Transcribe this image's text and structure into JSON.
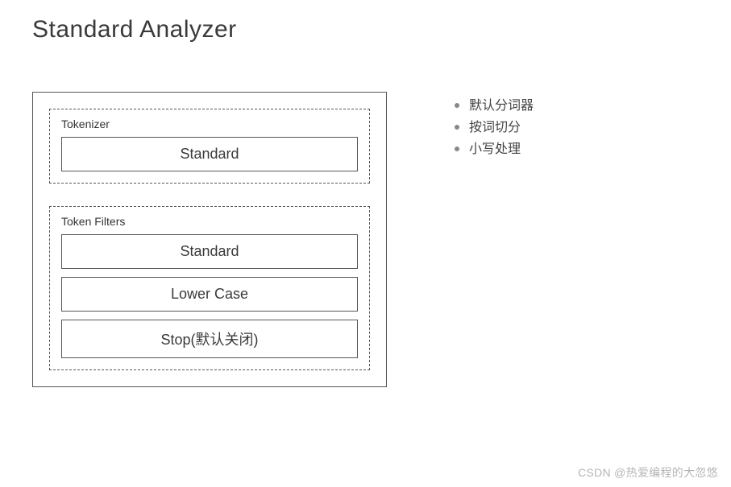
{
  "title": "Standard Analyzer",
  "diagram": {
    "tokenizer": {
      "label": "Tokenizer",
      "items": [
        "Standard"
      ]
    },
    "token_filters": {
      "label": "Token Filters",
      "items": [
        "Standard",
        "Lower Case",
        "Stop(默认关闭)"
      ]
    },
    "colors": {
      "border": "#555555",
      "text": "#3a3a3a",
      "bullet": "#888888",
      "background": "#ffffff"
    }
  },
  "bullets": [
    "默认分词器",
    "按词切分",
    "小写处理"
  ],
  "watermark": "CSDN @热爱编程的大忽悠"
}
